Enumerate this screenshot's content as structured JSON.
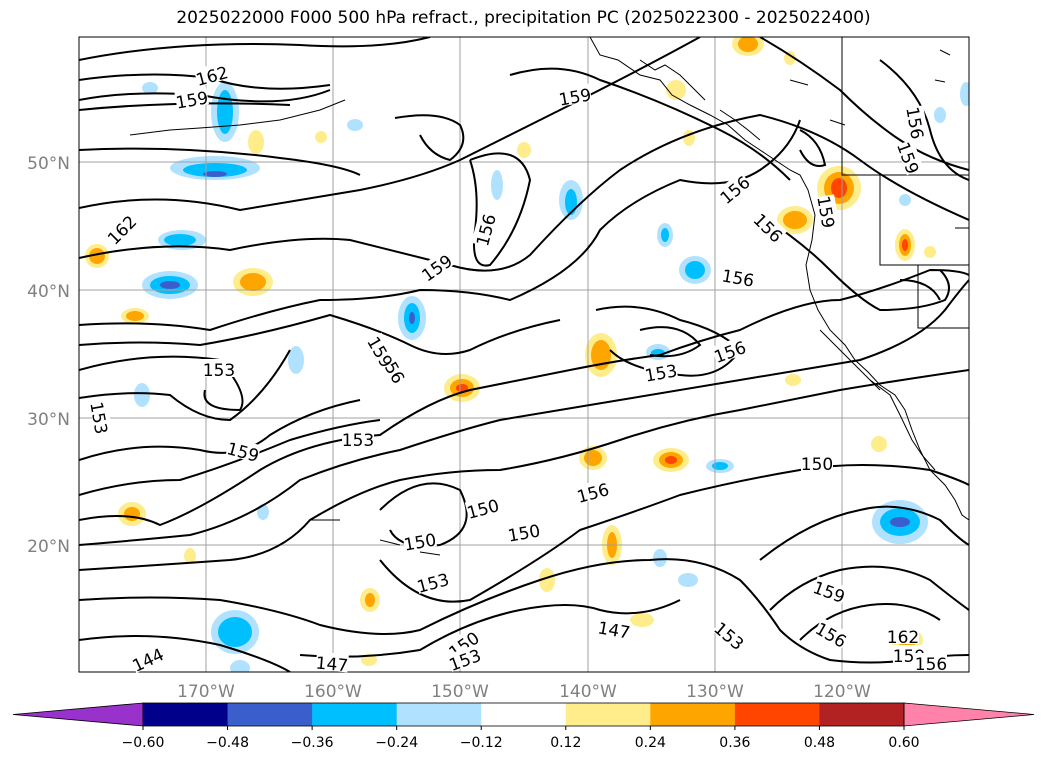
{
  "title": "2025022000 F000 500 hPa refract., precipitation PC (2025022300 - 2025022400)",
  "map": {
    "lon_range": [
      -180,
      -110
    ],
    "lat_range": [
      10,
      60
    ],
    "lat_ticks": [
      "50°N",
      "40°N",
      "30°N",
      "20°N"
    ],
    "lon_ticks": [
      "170°W",
      "160°W",
      "150°W",
      "140°W",
      "130°W",
      "120°W"
    ],
    "grid": true
  },
  "contour_labels": [
    "162",
    "159",
    "159",
    "156",
    "156",
    "156",
    "159",
    "156",
    "156",
    "159",
    "162",
    "159",
    "156",
    "153",
    "159",
    "156",
    "153",
    "159",
    "153",
    "153",
    "150",
    "150",
    "150",
    "156",
    "150",
    "153",
    "147",
    "153",
    "156",
    "159",
    "162",
    "159",
    "156",
    "144",
    "147",
    "150",
    "153"
  ],
  "colorbar": {
    "ticks": [
      "−0.60",
      "−0.48",
      "−0.36",
      "−0.24",
      "−0.12",
      "0.12",
      "0.24",
      "0.36",
      "0.48",
      "0.60"
    ],
    "colors": [
      "#9932cc",
      "#00008b",
      "#3a5fcd",
      "#00bfff",
      "#b0e2ff",
      "#ffffff",
      "#ffec8b",
      "#ffa500",
      "#ff4500",
      "#b22222",
      "#ff82ab"
    ]
  }
}
